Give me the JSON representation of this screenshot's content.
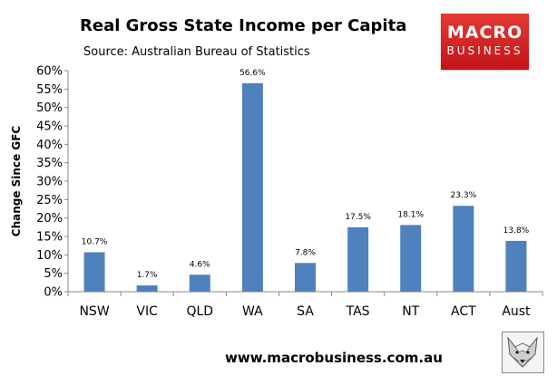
{
  "header": {
    "title": "Real Gross State Income per Capita",
    "subtitle": "Source: Australian Bureau of Statistics"
  },
  "logo": {
    "line1": "MACRO",
    "line2": "BUSINESS",
    "color": "#d4201f"
  },
  "footer": {
    "website": "www.macrobusiness.com.au",
    "mascot_icon": "fox-head-icon"
  },
  "chart_data": {
    "type": "bar",
    "categories": [
      "NSW",
      "VIC",
      "QLD",
      "WA",
      "SA",
      "TAS",
      "NT",
      "ACT",
      "Aust"
    ],
    "values": [
      10.7,
      1.7,
      4.6,
      56.6,
      7.8,
      17.5,
      18.1,
      23.3,
      13.8
    ],
    "value_labels": [
      "10.7%",
      "1.7%",
      "4.6%",
      "56.6%",
      "7.8%",
      "17.5%",
      "18.1%",
      "23.3%",
      "13.8%"
    ],
    "ylabel": "Change Since GFC",
    "ylim": [
      0,
      60
    ],
    "yticks": [
      0,
      5,
      10,
      15,
      20,
      25,
      30,
      35,
      40,
      45,
      50,
      55,
      60
    ],
    "ytick_labels": [
      "0%",
      "5%",
      "10%",
      "15%",
      "20%",
      "25%",
      "30%",
      "35%",
      "40%",
      "45%",
      "50%",
      "55%",
      "60%"
    ],
    "grid": false,
    "bar_color": "#4f81bd"
  }
}
